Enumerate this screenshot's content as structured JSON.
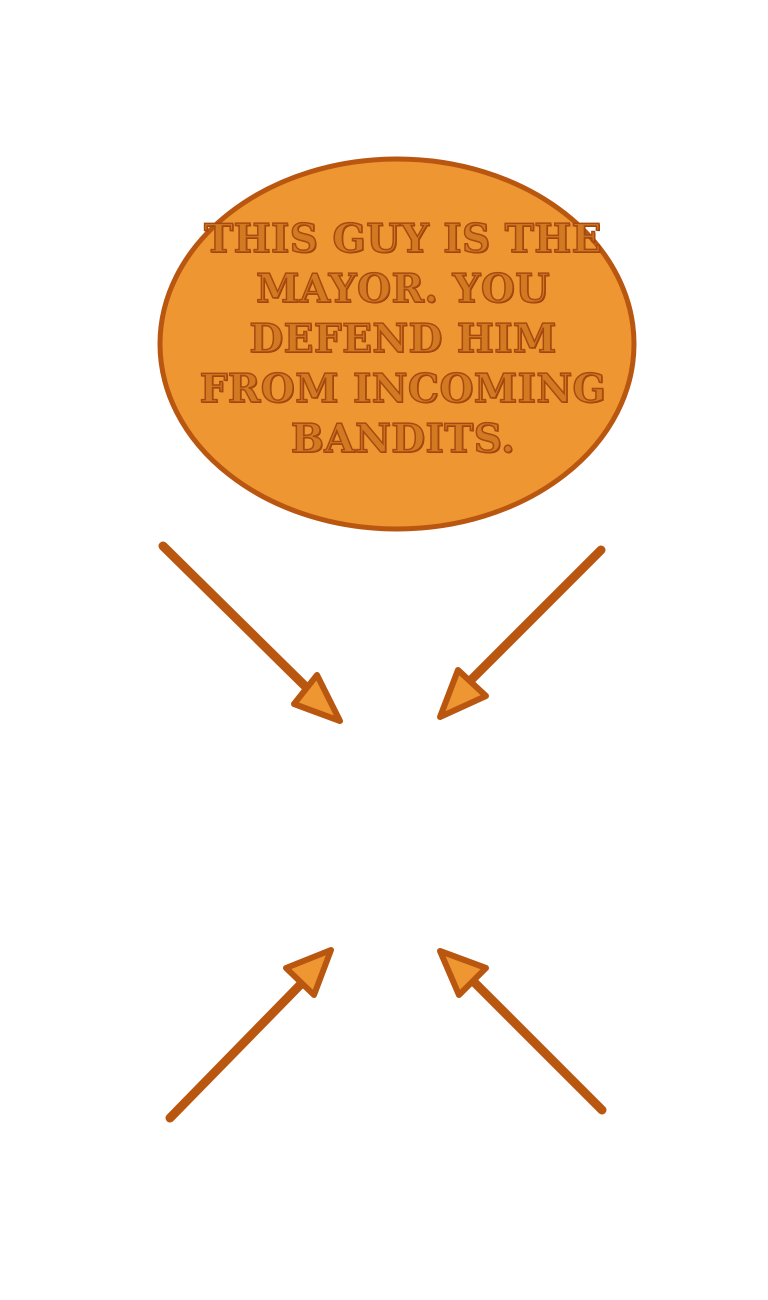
{
  "tutorial": {
    "message": "This guy is the mayor. You defend him from incoming bandits.",
    "arrow_count": 4
  },
  "colors": {
    "bubble_fill": "#ee9632",
    "bubble_stroke": "#b9560f",
    "text_fill": "#d17a22",
    "text_stroke": "#a84a10",
    "arrow_stroke": "#b9560f",
    "arrowhead_fill": "#ee9632",
    "background": "#ffffff"
  },
  "icons": {
    "arrows": [
      "arrow-down-right-icon",
      "arrow-down-left-icon",
      "arrow-up-right-icon",
      "arrow-up-left-icon"
    ]
  }
}
